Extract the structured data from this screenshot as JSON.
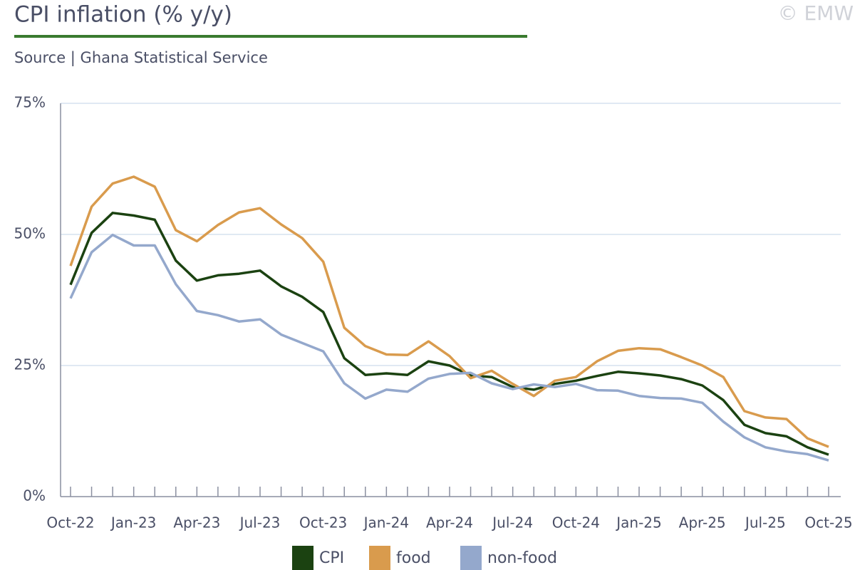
{
  "chart_data": {
    "type": "line",
    "title": "CPI inflation (% y/y)",
    "subtitle": "Source | Ghana Statistical Service",
    "watermark": "© EMW",
    "categories": [
      "Oct-22",
      null,
      null,
      "Jan-23",
      null,
      null,
      "Apr-23",
      null,
      null,
      "Jul-23",
      null,
      null,
      "Oct-23",
      null,
      null,
      "Jan-24",
      null,
      null,
      "Apr-24",
      null,
      null,
      "Jul-24",
      null,
      null,
      "Oct-24",
      null,
      null,
      "Jan-25",
      null,
      null,
      "Apr-25",
      null,
      null,
      "Jul-25",
      null,
      null,
      "Oct-25"
    ],
    "series": [
      {
        "name": "CPI",
        "color": "#1b4211",
        "values": [
          40.4,
          50.3,
          54.1,
          53.6,
          52.8,
          45.0,
          41.2,
          42.2,
          42.5,
          43.1,
          40.1,
          38.1,
          35.2,
          26.4,
          23.2,
          23.5,
          23.2,
          25.8,
          25.0,
          23.1,
          22.8,
          20.9,
          20.4,
          21.5,
          22.1,
          23.0,
          23.8,
          23.5,
          23.1,
          22.4,
          21.2,
          18.4,
          13.7,
          12.1,
          11.5,
          9.4,
          8.0
        ]
      },
      {
        "name": "food",
        "color": "#d99b4d",
        "values": [
          44.0,
          55.3,
          59.7,
          61.0,
          59.1,
          50.8,
          48.7,
          51.8,
          54.2,
          55.0,
          51.9,
          49.3,
          44.8,
          32.2,
          28.7,
          27.1,
          27.0,
          29.6,
          26.8,
          22.6,
          24.0,
          21.5,
          19.2,
          22.1,
          22.8,
          25.8,
          27.8,
          28.3,
          28.1,
          26.6,
          25.0,
          22.8,
          16.3,
          15.1,
          14.8,
          11.1,
          9.5
        ]
      },
      {
        "name": "non-food",
        "color": "#94a8cc",
        "values": [
          37.8,
          46.6,
          49.9,
          47.9,
          47.9,
          40.5,
          35.4,
          34.6,
          33.4,
          33.8,
          30.9,
          29.3,
          27.7,
          21.6,
          18.7,
          20.4,
          20.0,
          22.5,
          23.4,
          23.6,
          21.6,
          20.5,
          21.4,
          20.9,
          21.5,
          20.3,
          20.2,
          19.2,
          18.8,
          18.7,
          17.9,
          14.3,
          11.3,
          9.4,
          8.6,
          8.1,
          6.9
        ]
      }
    ],
    "ylim": [
      0,
      75
    ],
    "yticks": [
      {
        "value": 0,
        "label": "0%"
      },
      {
        "value": 25,
        "label": "25%"
      },
      {
        "value": 50,
        "label": "50%"
      },
      {
        "value": 75,
        "label": "75%"
      }
    ],
    "grid": true,
    "legend": "bottom"
  }
}
